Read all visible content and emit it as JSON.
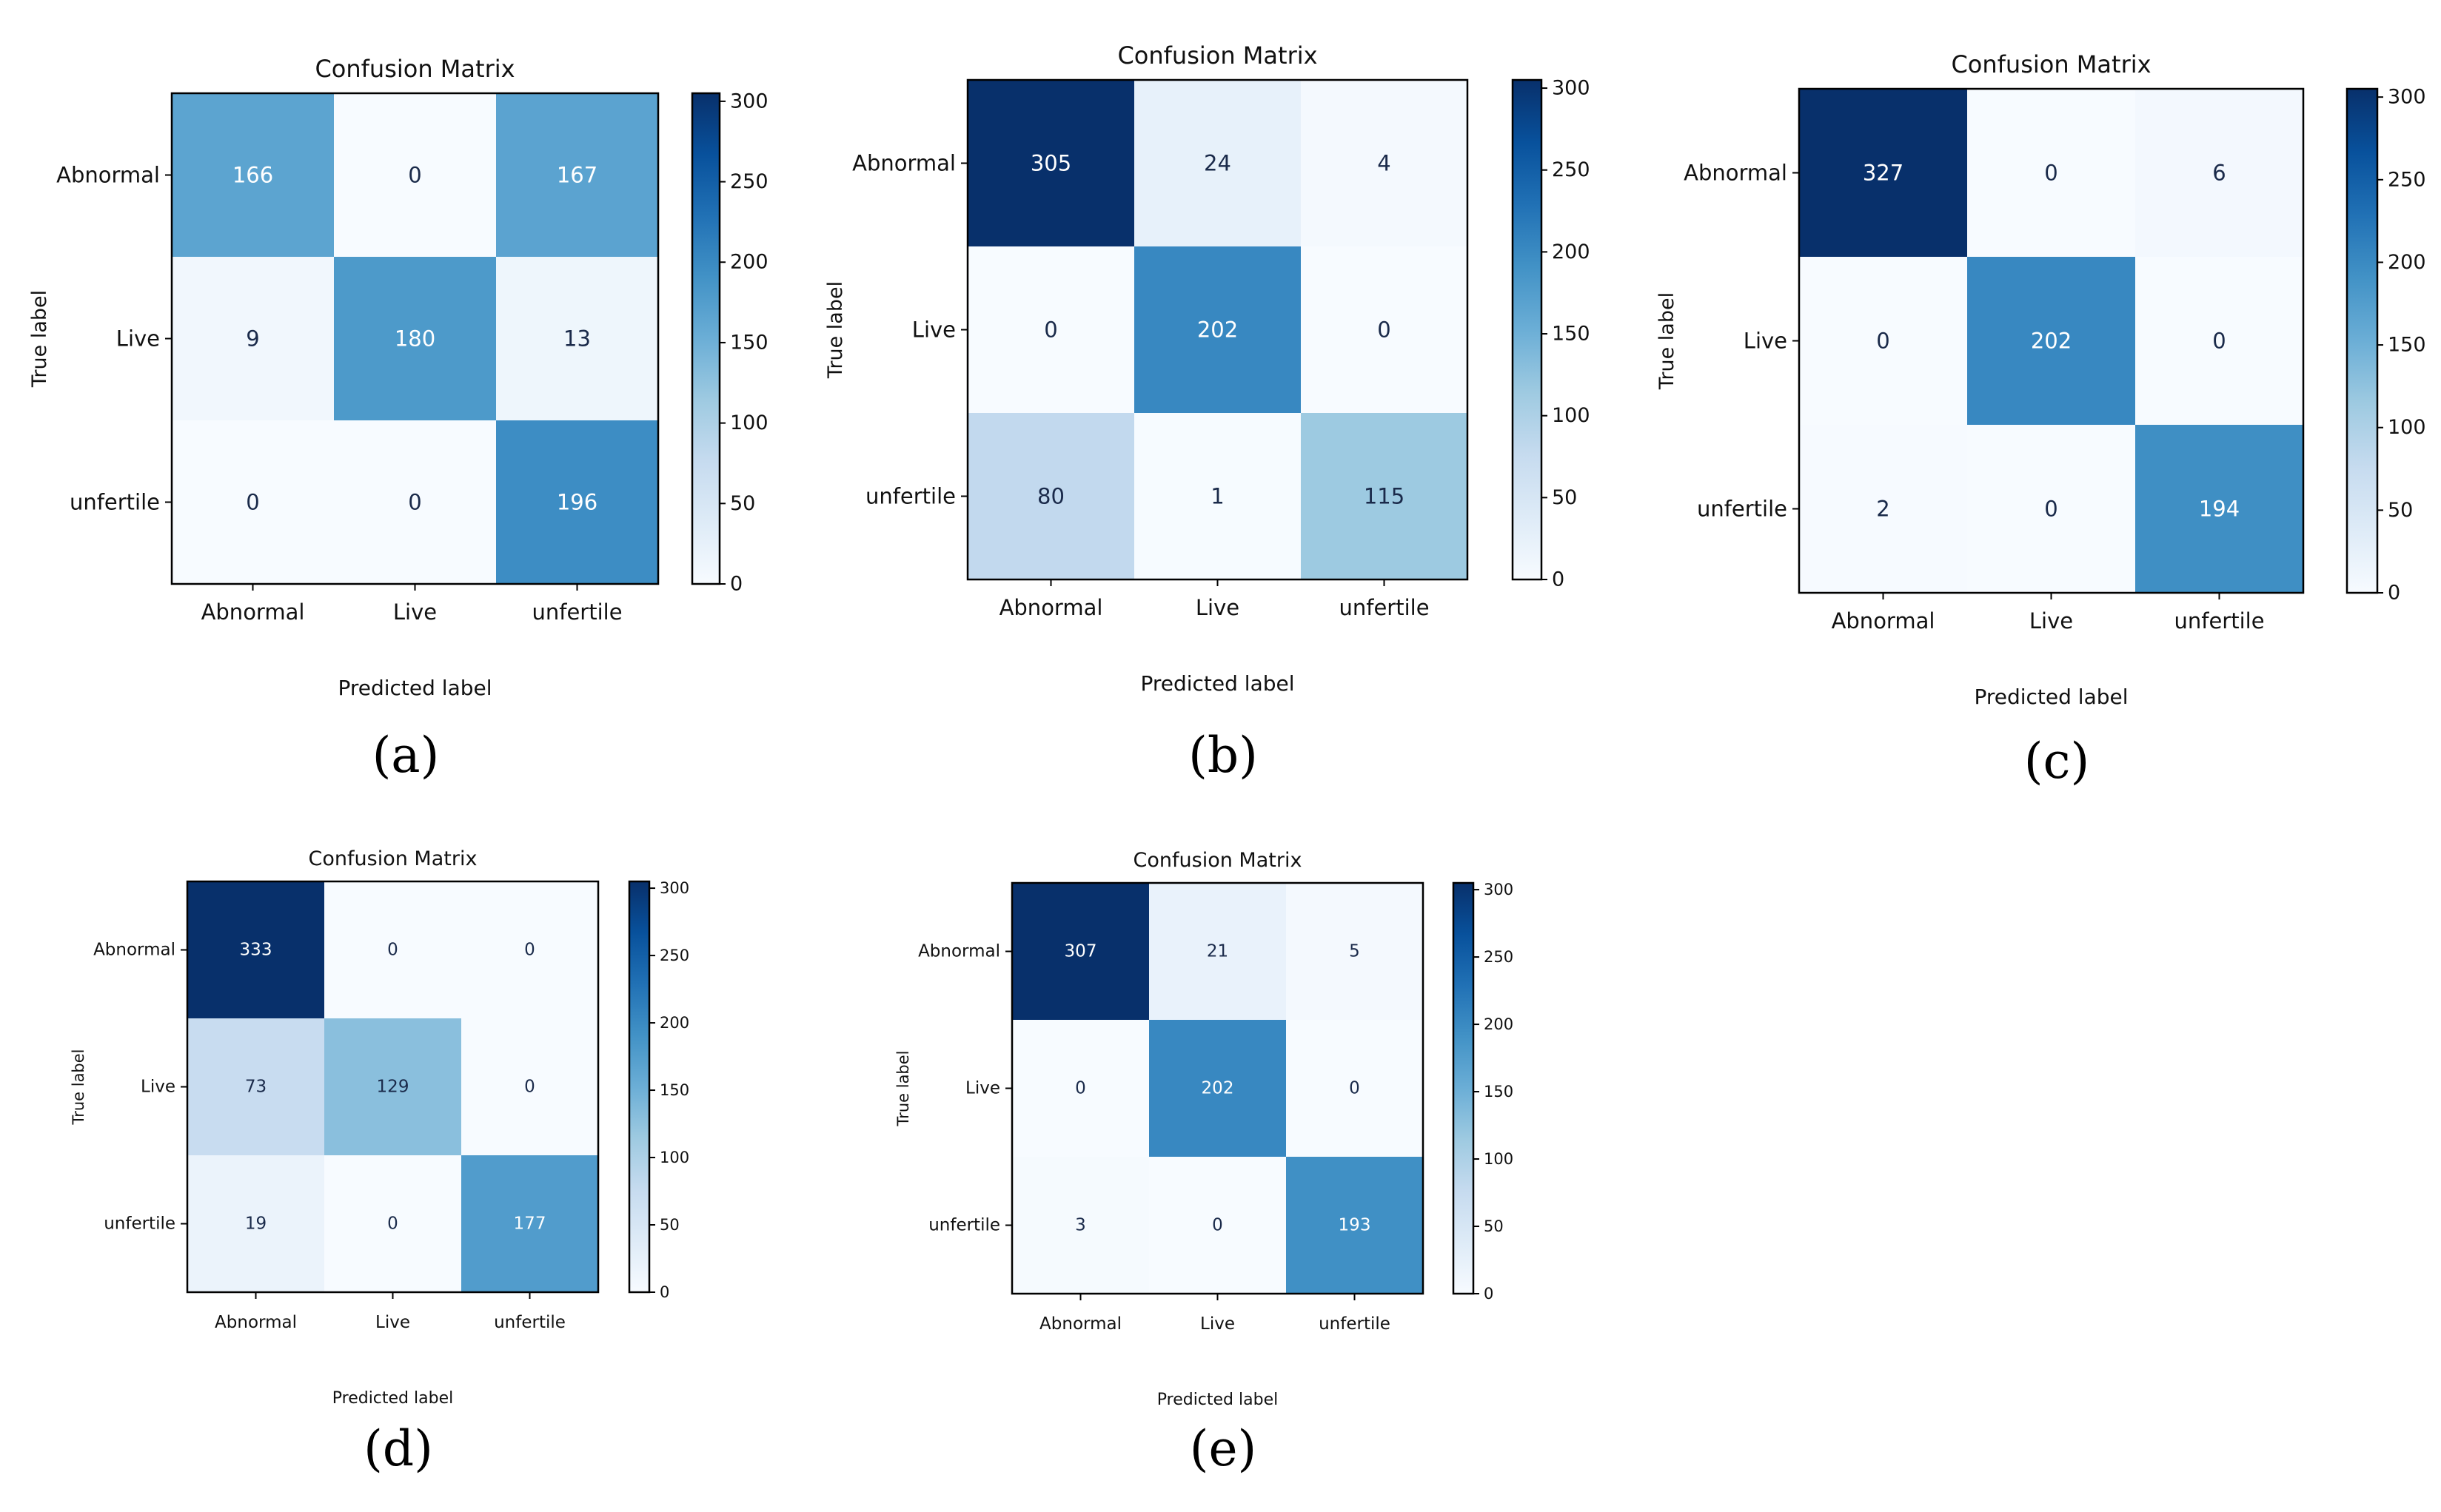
{
  "figure": {
    "panels": [
      {
        "caption": "(a)"
      },
      {
        "caption": "(b)"
      },
      {
        "caption": "(c)"
      },
      {
        "caption": "(d)"
      },
      {
        "caption": "(e)"
      }
    ]
  },
  "chart_data": [
    {
      "type": "heatmap",
      "title": "Confusion Matrix",
      "xlabel": "Predicted label",
      "ylabel": "True label",
      "x_categories": [
        "Abnormal",
        "Live",
        "unfertile"
      ],
      "y_categories": [
        "Abnormal",
        "Live",
        "unfertile"
      ],
      "values": [
        [
          166,
          0,
          167
        ],
        [
          9,
          180,
          13
        ],
        [
          0,
          0,
          196
        ]
      ],
      "colorbar": {
        "min": 0,
        "max": 305,
        "ticks": [
          0,
          50,
          100,
          150,
          200,
          250,
          300
        ]
      },
      "colormap": "Blues"
    },
    {
      "type": "heatmap",
      "title": "Confusion Matrix",
      "xlabel": "Predicted label",
      "ylabel": "True label",
      "x_categories": [
        "Abnormal",
        "Live",
        "unfertile"
      ],
      "y_categories": [
        "Abnormal",
        "Live",
        "unfertile"
      ],
      "values": [
        [
          305,
          24,
          4
        ],
        [
          0,
          202,
          0
        ],
        [
          80,
          1,
          115
        ]
      ],
      "colorbar": {
        "min": 0,
        "max": 305,
        "ticks": [
          0,
          50,
          100,
          150,
          200,
          250,
          300
        ]
      },
      "colormap": "Blues"
    },
    {
      "type": "heatmap",
      "title": "Confusion Matrix",
      "xlabel": "Predicted label",
      "ylabel": "True label",
      "x_categories": [
        "Abnormal",
        "Live",
        "unfertile"
      ],
      "y_categories": [
        "Abnormal",
        "Live",
        "unfertile"
      ],
      "values": [
        [
          327,
          0,
          6
        ],
        [
          0,
          202,
          0
        ],
        [
          2,
          0,
          194
        ]
      ],
      "colorbar": {
        "min": 0,
        "max": 305,
        "ticks": [
          0,
          50,
          100,
          150,
          200,
          250,
          300
        ]
      },
      "colormap": "Blues"
    },
    {
      "type": "heatmap",
      "title": "Confusion Matrix",
      "xlabel": "Predicted label",
      "ylabel": "True label",
      "x_categories": [
        "Abnormal",
        "Live",
        "unfertile"
      ],
      "y_categories": [
        "Abnormal",
        "Live",
        "unfertile"
      ],
      "values": [
        [
          333,
          0,
          0
        ],
        [
          73,
          129,
          0
        ],
        [
          19,
          0,
          177
        ]
      ],
      "colorbar": {
        "min": 0,
        "max": 305,
        "ticks": [
          0,
          50,
          100,
          150,
          200,
          250,
          300
        ]
      },
      "colormap": "Blues"
    },
    {
      "type": "heatmap",
      "title": "Confusion Matrix",
      "xlabel": "Predicted label",
      "ylabel": "True label",
      "x_categories": [
        "Abnormal",
        "Live",
        "unfertile"
      ],
      "y_categories": [
        "Abnormal",
        "Live",
        "unfertile"
      ],
      "values": [
        [
          307,
          21,
          5
        ],
        [
          0,
          202,
          0
        ],
        [
          3,
          0,
          193
        ]
      ],
      "colorbar": {
        "min": 0,
        "max": 305,
        "ticks": [
          0,
          50,
          100,
          150,
          200,
          250,
          300
        ]
      },
      "colormap": "Blues"
    }
  ]
}
